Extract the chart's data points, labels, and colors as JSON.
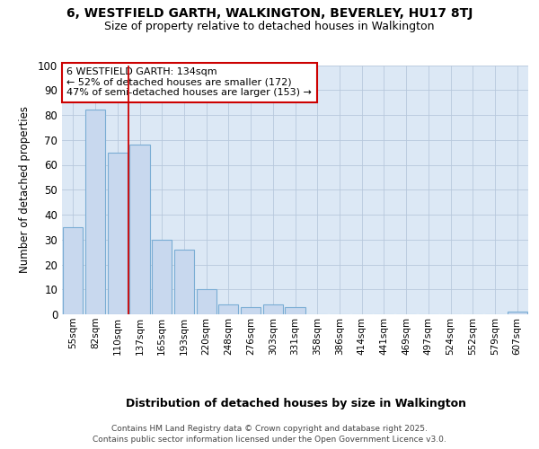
{
  "title_line1": "6, WESTFIELD GARTH, WALKINGTON, BEVERLEY, HU17 8TJ",
  "title_line2": "Size of property relative to detached houses in Walkington",
  "xlabel": "Distribution of detached houses by size in Walkington",
  "ylabel": "Number of detached properties",
  "categories": [
    "55sqm",
    "82sqm",
    "110sqm",
    "137sqm",
    "165sqm",
    "193sqm",
    "220sqm",
    "248sqm",
    "276sqm",
    "303sqm",
    "331sqm",
    "358sqm",
    "386sqm",
    "414sqm",
    "441sqm",
    "469sqm",
    "497sqm",
    "524sqm",
    "552sqm",
    "579sqm",
    "607sqm"
  ],
  "values": [
    35,
    82,
    65,
    68,
    30,
    26,
    10,
    4,
    3,
    4,
    3,
    0,
    0,
    0,
    0,
    0,
    0,
    0,
    0,
    0,
    1
  ],
  "bar_color": "#c8d8ee",
  "bar_edge_color": "#7aadd4",
  "vline_x": 2.5,
  "vline_color": "#cc0000",
  "annotation_text": "6 WESTFIELD GARTH: 134sqm\n← 52% of detached houses are smaller (172)\n47% of semi-detached houses are larger (153) →",
  "annotation_box_color": "#ffffff",
  "annotation_box_edge": "#cc0000",
  "ylim": [
    0,
    100
  ],
  "yticks": [
    0,
    10,
    20,
    30,
    40,
    50,
    60,
    70,
    80,
    90,
    100
  ],
  "footer_line1": "Contains HM Land Registry data © Crown copyright and database right 2025.",
  "footer_line2": "Contains public sector information licensed under the Open Government Licence v3.0.",
  "fig_bg_color": "#ffffff",
  "plot_bg_color": "#dce8f5"
}
